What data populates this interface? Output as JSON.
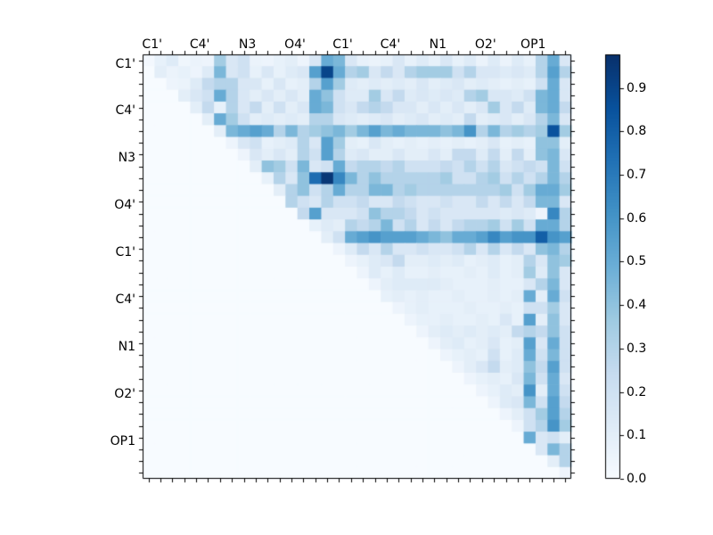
{
  "chart_data": {
    "type": "heatmap",
    "title": "",
    "n": 36,
    "x_tick_labels": [
      "C1'",
      "C4'",
      "N3",
      "O4'",
      "C1'",
      "C4'",
      "N1",
      "O2'",
      "OP1"
    ],
    "y_tick_labels": [
      "C1'",
      "C4'",
      "N3",
      "O4'",
      "C1'",
      "C4'",
      "N1",
      "O2'",
      "OP1"
    ],
    "labeled_tick_cells": [
      0,
      4,
      8,
      12,
      16,
      20,
      24,
      28,
      32
    ],
    "vmax": 0.977,
    "colormap": {
      "name": "Blues",
      "stops": [
        "#f7fbff",
        "#deebf7",
        "#c6dbef",
        "#9ecae1",
        "#6baed6",
        "#4292c6",
        "#2171b5",
        "#08519c",
        "#08306b"
      ]
    },
    "colorbar_tick_labels": [
      "0.0",
      "0.1",
      "0.2",
      "0.3",
      "0.4",
      "0.5",
      "0.6",
      "0.7",
      "0.8",
      "0.9"
    ],
    "matrix": [
      [
        0.02,
        0.08,
        0.12,
        0.04,
        0.06,
        0.05,
        0.35,
        0.15,
        0.2,
        0.06,
        0.05,
        0.08,
        0.1,
        0.05,
        0.15,
        0.5,
        0.45,
        0.15,
        0.08,
        0.06,
        0.08,
        0.15,
        0.08,
        0.12,
        0.08,
        0.15,
        0.08,
        0.12,
        0.06,
        0.12,
        0.06,
        0.12,
        0.08,
        0.3,
        0.5,
        0.15
      ],
      [
        0,
        0.1,
        0.06,
        0.08,
        0.05,
        0.12,
        0.45,
        0.15,
        0.2,
        0.08,
        0.15,
        0.08,
        0.12,
        0.15,
        0.55,
        0.9,
        0.5,
        0.3,
        0.35,
        0.15,
        0.25,
        0.15,
        0.3,
        0.35,
        0.35,
        0.35,
        0.2,
        0.3,
        0.15,
        0.15,
        0.12,
        0.15,
        0.12,
        0.3,
        0.55,
        0.3
      ],
      [
        0,
        0,
        0.05,
        0.06,
        0.12,
        0.25,
        0.3,
        0.3,
        0.15,
        0.15,
        0.08,
        0.15,
        0.08,
        0.1,
        0.3,
        0.55,
        0.35,
        0.12,
        0.1,
        0.12,
        0.1,
        0.12,
        0.1,
        0.15,
        0.1,
        0.12,
        0.15,
        0.1,
        0.12,
        0.1,
        0.08,
        0.1,
        0.08,
        0.2,
        0.5,
        0.15
      ],
      [
        0,
        0,
        0,
        0.1,
        0.15,
        0.2,
        0.5,
        0.3,
        0.15,
        0.1,
        0.15,
        0.1,
        0.15,
        0.1,
        0.5,
        0.4,
        0.2,
        0.12,
        0.12,
        0.35,
        0.15,
        0.25,
        0.12,
        0.15,
        0.12,
        0.15,
        0.12,
        0.3,
        0.35,
        0.15,
        0.15,
        0.12,
        0.2,
        0.45,
        0.5,
        0.15
      ],
      [
        0,
        0,
        0,
        0,
        0.1,
        0.25,
        0.08,
        0.3,
        0.15,
        0.25,
        0.1,
        0.2,
        0.1,
        0.15,
        0.5,
        0.45,
        0.2,
        0.15,
        0.25,
        0.3,
        0.25,
        0.15,
        0.15,
        0.1,
        0.15,
        0.1,
        0.15,
        0.1,
        0.15,
        0.35,
        0.15,
        0.25,
        0.12,
        0.45,
        0.5,
        0.25
      ],
      [
        0,
        0,
        0,
        0,
        0,
        0.1,
        0.5,
        0.35,
        0.2,
        0.1,
        0.12,
        0.1,
        0.12,
        0.1,
        0.3,
        0.3,
        0.15,
        0.12,
        0.1,
        0.12,
        0.15,
        0.1,
        0.12,
        0.15,
        0.1,
        0.12,
        0.1,
        0.25,
        0.1,
        0.12,
        0.15,
        0.1,
        0.15,
        0.3,
        0.45,
        0.15
      ],
      [
        0,
        0,
        0,
        0,
        0,
        0,
        0.1,
        0.45,
        0.5,
        0.55,
        0.5,
        0.3,
        0.45,
        0.3,
        0.35,
        0.4,
        0.45,
        0.35,
        0.45,
        0.55,
        0.45,
        0.5,
        0.45,
        0.45,
        0.45,
        0.4,
        0.45,
        0.6,
        0.3,
        0.45,
        0.3,
        0.35,
        0.3,
        0.35,
        0.85,
        0.35
      ],
      [
        0,
        0,
        0,
        0,
        0,
        0,
        0,
        0.05,
        0.15,
        0.2,
        0.08,
        0.1,
        0.12,
        0.3,
        0.15,
        0.55,
        0.35,
        0.1,
        0.08,
        0.15,
        0.1,
        0.08,
        0.1,
        0.08,
        0.1,
        0.08,
        0.1,
        0.08,
        0.1,
        0.15,
        0.08,
        0.1,
        0.08,
        0.4,
        0.4,
        0.1
      ],
      [
        0,
        0,
        0,
        0,
        0,
        0,
        0,
        0,
        0.05,
        0.15,
        0.1,
        0.15,
        0.1,
        0.3,
        0.2,
        0.55,
        0.3,
        0.12,
        0.15,
        0.1,
        0.1,
        0.15,
        0.1,
        0.1,
        0.15,
        0.1,
        0.25,
        0.25,
        0.12,
        0.25,
        0.1,
        0.25,
        0.1,
        0.4,
        0.45,
        0.15
      ],
      [
        0,
        0,
        0,
        0,
        0,
        0,
        0,
        0,
        0,
        0.1,
        0.4,
        0.35,
        0.2,
        0.45,
        0.15,
        0.2,
        0.5,
        0.25,
        0.3,
        0.3,
        0.25,
        0.3,
        0.2,
        0.2,
        0.2,
        0.25,
        0.2,
        0.3,
        0.2,
        0.3,
        0.15,
        0.2,
        0.25,
        0.2,
        0.45,
        0.2
      ],
      [
        0,
        0,
        0,
        0,
        0,
        0,
        0,
        0,
        0,
        0,
        0.08,
        0.3,
        0.15,
        0.4,
        0.75,
        0.95,
        0.65,
        0.45,
        0.3,
        0.4,
        0.3,
        0.3,
        0.3,
        0.3,
        0.3,
        0.35,
        0.2,
        0.2,
        0.3,
        0.35,
        0.2,
        0.3,
        0.2,
        0.3,
        0.45,
        0.3
      ],
      [
        0,
        0,
        0,
        0,
        0,
        0,
        0,
        0,
        0,
        0,
        0,
        0.1,
        0.3,
        0.4,
        0.2,
        0.3,
        0.5,
        0.3,
        0.3,
        0.45,
        0.45,
        0.3,
        0.35,
        0.3,
        0.3,
        0.3,
        0.3,
        0.3,
        0.3,
        0.3,
        0.35,
        0.2,
        0.35,
        0.5,
        0.5,
        0.35
      ],
      [
        0,
        0,
        0,
        0,
        0,
        0,
        0,
        0,
        0,
        0,
        0,
        0,
        0.3,
        0.2,
        0.15,
        0.3,
        0.2,
        0.2,
        0.25,
        0.15,
        0.15,
        0.25,
        0.2,
        0.15,
        0.15,
        0.2,
        0.15,
        0.15,
        0.25,
        0.15,
        0.25,
        0.15,
        0.25,
        0.45,
        0.45,
        0.15
      ],
      [
        0,
        0,
        0,
        0,
        0,
        0,
        0,
        0,
        0,
        0,
        0,
        0,
        0,
        0.25,
        0.55,
        0.15,
        0.15,
        0.15,
        0.2,
        0.4,
        0.3,
        0.3,
        0.25,
        0.15,
        0.2,
        0.15,
        0.15,
        0.15,
        0.15,
        0.15,
        0.12,
        0.15,
        0.12,
        0.05,
        0.65,
        0.3
      ],
      [
        0,
        0,
        0,
        0,
        0,
        0,
        0,
        0,
        0,
        0,
        0,
        0,
        0,
        0,
        0.08,
        0.12,
        0.1,
        0.3,
        0.25,
        0.3,
        0.45,
        0.2,
        0.3,
        0.15,
        0.25,
        0.15,
        0.25,
        0.3,
        0.3,
        0.35,
        0.2,
        0.35,
        0.2,
        0.5,
        0.5,
        0.3
      ],
      [
        0,
        0,
        0,
        0,
        0,
        0,
        0,
        0,
        0,
        0,
        0,
        0,
        0,
        0,
        0,
        0.1,
        0.2,
        0.5,
        0.55,
        0.6,
        0.55,
        0.55,
        0.55,
        0.5,
        0.45,
        0.4,
        0.5,
        0.5,
        0.55,
        0.65,
        0.55,
        0.6,
        0.6,
        0.8,
        0.6,
        0.55
      ],
      [
        0,
        0,
        0,
        0,
        0,
        0,
        0,
        0,
        0,
        0,
        0,
        0,
        0,
        0,
        0,
        0,
        0.05,
        0.12,
        0.25,
        0.15,
        0.3,
        0.15,
        0.15,
        0.2,
        0.15,
        0.15,
        0.2,
        0.3,
        0.15,
        0.3,
        0.15,
        0.25,
        0.15,
        0.4,
        0.45,
        0.3
      ],
      [
        0,
        0,
        0,
        0,
        0,
        0,
        0,
        0,
        0,
        0,
        0,
        0,
        0,
        0,
        0,
        0,
        0,
        0.05,
        0.08,
        0.12,
        0.15,
        0.25,
        0.1,
        0.1,
        0.12,
        0.1,
        0.12,
        0.08,
        0.1,
        0.12,
        0.08,
        0.1,
        0.3,
        0.15,
        0.4,
        0.35
      ],
      [
        0,
        0,
        0,
        0,
        0,
        0,
        0,
        0,
        0,
        0,
        0,
        0,
        0,
        0,
        0,
        0,
        0,
        0,
        0.05,
        0.12,
        0.08,
        0.12,
        0.08,
        0.08,
        0.1,
        0.08,
        0.08,
        0.1,
        0.08,
        0.12,
        0.08,
        0.1,
        0.35,
        0.12,
        0.4,
        0.15
      ],
      [
        0,
        0,
        0,
        0,
        0,
        0,
        0,
        0,
        0,
        0,
        0,
        0,
        0,
        0,
        0,
        0,
        0,
        0,
        0,
        0.05,
        0.1,
        0.12,
        0.12,
        0.12,
        0.12,
        0.1,
        0.08,
        0.08,
        0.08,
        0.1,
        0.08,
        0.08,
        0.15,
        0.3,
        0.45,
        0.15
      ],
      [
        0,
        0,
        0,
        0,
        0,
        0,
        0,
        0,
        0,
        0,
        0,
        0,
        0,
        0,
        0,
        0,
        0,
        0,
        0,
        0,
        0.08,
        0.1,
        0.08,
        0.1,
        0.08,
        0.08,
        0.1,
        0.08,
        0.08,
        0.1,
        0.08,
        0.1,
        0.5,
        0.1,
        0.5,
        0.2
      ],
      [
        0,
        0,
        0,
        0,
        0,
        0,
        0,
        0,
        0,
        0,
        0,
        0,
        0,
        0,
        0,
        0,
        0,
        0,
        0,
        0,
        0,
        0.05,
        0.08,
        0.1,
        0.08,
        0.08,
        0.08,
        0.1,
        0.08,
        0.08,
        0.1,
        0.08,
        0.2,
        0.2,
        0.35,
        0.15
      ],
      [
        0,
        0,
        0,
        0,
        0,
        0,
        0,
        0,
        0,
        0,
        0,
        0,
        0,
        0,
        0,
        0,
        0,
        0,
        0,
        0,
        0,
        0,
        0.05,
        0.08,
        0.08,
        0.1,
        0.08,
        0.08,
        0.1,
        0.08,
        0.15,
        0.08,
        0.55,
        0.1,
        0.4,
        0.15
      ],
      [
        0,
        0,
        0,
        0,
        0,
        0,
        0,
        0,
        0,
        0,
        0,
        0,
        0,
        0,
        0,
        0,
        0,
        0,
        0,
        0,
        0,
        0,
        0,
        0.05,
        0.1,
        0.12,
        0.1,
        0.12,
        0.1,
        0.12,
        0.1,
        0.25,
        0.3,
        0.25,
        0.4,
        0.2
      ],
      [
        0,
        0,
        0,
        0,
        0,
        0,
        0,
        0,
        0,
        0,
        0,
        0,
        0,
        0,
        0,
        0,
        0,
        0,
        0,
        0,
        0,
        0,
        0,
        0,
        0.05,
        0.1,
        0.12,
        0.08,
        0.1,
        0.15,
        0.08,
        0.1,
        0.55,
        0.15,
        0.5,
        0.2
      ],
      [
        0,
        0,
        0,
        0,
        0,
        0,
        0,
        0,
        0,
        0,
        0,
        0,
        0,
        0,
        0,
        0,
        0,
        0,
        0,
        0,
        0,
        0,
        0,
        0,
        0,
        0.05,
        0.08,
        0.1,
        0.08,
        0.2,
        0.08,
        0.12,
        0.5,
        0.2,
        0.45,
        0.2
      ],
      [
        0,
        0,
        0,
        0,
        0,
        0,
        0,
        0,
        0,
        0,
        0,
        0,
        0,
        0,
        0,
        0,
        0,
        0,
        0,
        0,
        0,
        0,
        0,
        0,
        0,
        0,
        0.05,
        0.1,
        0.15,
        0.25,
        0.1,
        0.12,
        0.4,
        0.25,
        0.55,
        0.2
      ],
      [
        0,
        0,
        0,
        0,
        0,
        0,
        0,
        0,
        0,
        0,
        0,
        0,
        0,
        0,
        0,
        0,
        0,
        0,
        0,
        0,
        0,
        0,
        0,
        0,
        0,
        0,
        0,
        0.05,
        0.08,
        0.1,
        0.08,
        0.15,
        0.45,
        0.2,
        0.5,
        0.15
      ],
      [
        0,
        0,
        0,
        0,
        0,
        0,
        0,
        0,
        0,
        0,
        0,
        0,
        0,
        0,
        0,
        0,
        0,
        0,
        0,
        0,
        0,
        0,
        0,
        0,
        0,
        0,
        0,
        0,
        0.05,
        0.08,
        0.12,
        0.1,
        0.6,
        0.1,
        0.5,
        0.2
      ],
      [
        0,
        0,
        0,
        0,
        0,
        0,
        0,
        0,
        0,
        0,
        0,
        0,
        0,
        0,
        0,
        0,
        0,
        0,
        0,
        0,
        0,
        0,
        0,
        0,
        0,
        0,
        0,
        0,
        0,
        0.05,
        0.12,
        0.15,
        0.45,
        0.2,
        0.55,
        0.25
      ],
      [
        0,
        0,
        0,
        0,
        0,
        0,
        0,
        0,
        0,
        0,
        0,
        0,
        0,
        0,
        0,
        0,
        0,
        0,
        0,
        0,
        0,
        0,
        0,
        0,
        0,
        0,
        0,
        0,
        0,
        0,
        0.05,
        0.1,
        0.2,
        0.35,
        0.55,
        0.3
      ],
      [
        0,
        0,
        0,
        0,
        0,
        0,
        0,
        0,
        0,
        0,
        0,
        0,
        0,
        0,
        0,
        0,
        0,
        0,
        0,
        0,
        0,
        0,
        0,
        0,
        0,
        0,
        0,
        0,
        0,
        0,
        0,
        0.05,
        0.2,
        0.3,
        0.6,
        0.35
      ],
      [
        0,
        0,
        0,
        0,
        0,
        0,
        0,
        0,
        0,
        0,
        0,
        0,
        0,
        0,
        0,
        0,
        0,
        0,
        0,
        0,
        0,
        0,
        0,
        0,
        0,
        0,
        0,
        0,
        0,
        0,
        0,
        0,
        0.5,
        0.15,
        0.2,
        0.1
      ],
      [
        0,
        0,
        0,
        0,
        0,
        0,
        0,
        0,
        0,
        0,
        0,
        0,
        0,
        0,
        0,
        0,
        0,
        0,
        0,
        0,
        0,
        0,
        0,
        0,
        0,
        0,
        0,
        0,
        0,
        0,
        0,
        0,
        0,
        0.15,
        0.45,
        0.3
      ],
      [
        0,
        0,
        0,
        0,
        0,
        0,
        0,
        0,
        0,
        0,
        0,
        0,
        0,
        0,
        0,
        0,
        0,
        0,
        0,
        0,
        0,
        0,
        0,
        0,
        0,
        0,
        0,
        0,
        0,
        0,
        0,
        0,
        0,
        0,
        0.1,
        0.3
      ],
      [
        0,
        0,
        0,
        0,
        0,
        0,
        0,
        0,
        0,
        0,
        0,
        0,
        0,
        0,
        0,
        0,
        0,
        0,
        0,
        0,
        0,
        0,
        0,
        0,
        0,
        0,
        0,
        0,
        0,
        0,
        0,
        0,
        0,
        0,
        0,
        0.05
      ]
    ]
  }
}
